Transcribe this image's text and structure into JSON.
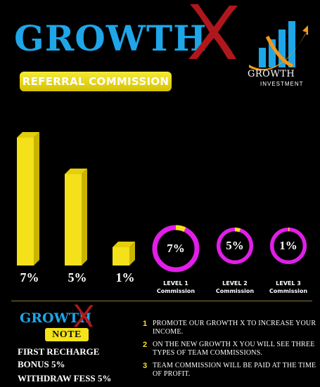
{
  "header": {
    "title": "GROWTH",
    "badge": "REFERRAL COMMISSION"
  },
  "logo": {
    "word": "GROWTH",
    "sub": "INVESTMENT",
    "icon": "growth-x-logo-icon"
  },
  "chart_data": {
    "type": "bar",
    "categories": [
      "",
      "",
      ""
    ],
    "values": [
      7,
      5,
      1
    ],
    "labels": [
      "7%",
      "5%",
      "1%"
    ],
    "ylim": [
      0,
      7
    ],
    "color": "#f5e11a"
  },
  "levels": [
    {
      "value": "7%",
      "percent": 7,
      "name": "LEVEL 1",
      "sub": "Commission"
    },
    {
      "value": "5%",
      "percent": 5,
      "name": "LEVEL 2",
      "sub": "Commission"
    },
    {
      "value": "1%",
      "percent": 1,
      "name": "LEVEL 3",
      "sub": "Commission"
    }
  ],
  "colors": {
    "brand_blue": "#1ea6e8",
    "x_red": "#b0171d",
    "yellow": "#f5e11a",
    "ring": "#e11ee8"
  },
  "note": {
    "brand": "GROWTH",
    "tag": "NOTE",
    "first_recharge": "FIRST RECHARGE",
    "bonus": "BONUS 5%",
    "withdraw": "WITHDRAW FESS 5%"
  },
  "points": [
    {
      "num": "1",
      "text": "PROMOTE OUR GROWTH X TO INCREASE YOUR INCOME."
    },
    {
      "num": "2",
      "text": "ON THE NEW GROWTH X YOU WILL SEE THREE TYPES OF TEAM COMMISSIONS."
    },
    {
      "num": "3",
      "text": "TEAM COMMISSION WILL BE PAID AT THE TIME OF PROFIT."
    }
  ]
}
